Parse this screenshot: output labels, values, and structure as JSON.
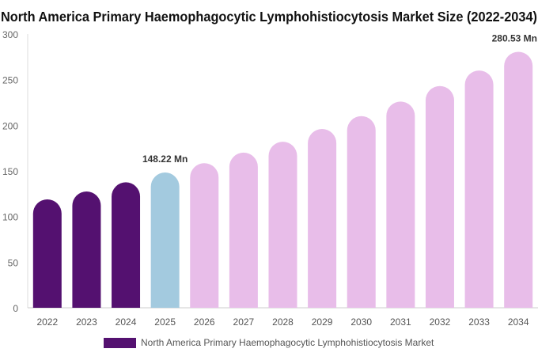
{
  "chart_data": {
    "type": "bar",
    "title": "North America Primary Haemophagocytic Lymphohistiocytosis Market Size (2022-2034)",
    "categories": [
      "2022",
      "2023",
      "2024",
      "2025",
      "2026",
      "2027",
      "2028",
      "2029",
      "2030",
      "2031",
      "2032",
      "2033",
      "2034"
    ],
    "series": [
      {
        "name": "North America Primary Haemophagocytic Lymphohistiocytosis Market",
        "values": [
          118.8,
          127.5,
          137.5,
          148.22,
          158.5,
          170.0,
          182.0,
          196.0,
          210.0,
          226.0,
          243.0,
          260.0,
          280.53
        ]
      }
    ],
    "bar_colors": [
      "#541170",
      "#541170",
      "#541170",
      "#a3cadf",
      "#e8bde9",
      "#e8bde9",
      "#e8bde9",
      "#e8bde9",
      "#e8bde9",
      "#e8bde9",
      "#e8bde9",
      "#e8bde9",
      "#e8bde9"
    ],
    "data_labels": [
      {
        "category": "2025",
        "text": "148.22 Mn"
      },
      {
        "category": "2034",
        "text": "280.53 Mn"
      }
    ],
    "yticks": [
      0,
      50,
      100,
      150,
      200,
      250,
      300
    ],
    "ylim": [
      0,
      300
    ],
    "xlabel": "",
    "ylabel": "",
    "grid": false,
    "legend_position": "bottom",
    "legend_color": "#541170"
  }
}
